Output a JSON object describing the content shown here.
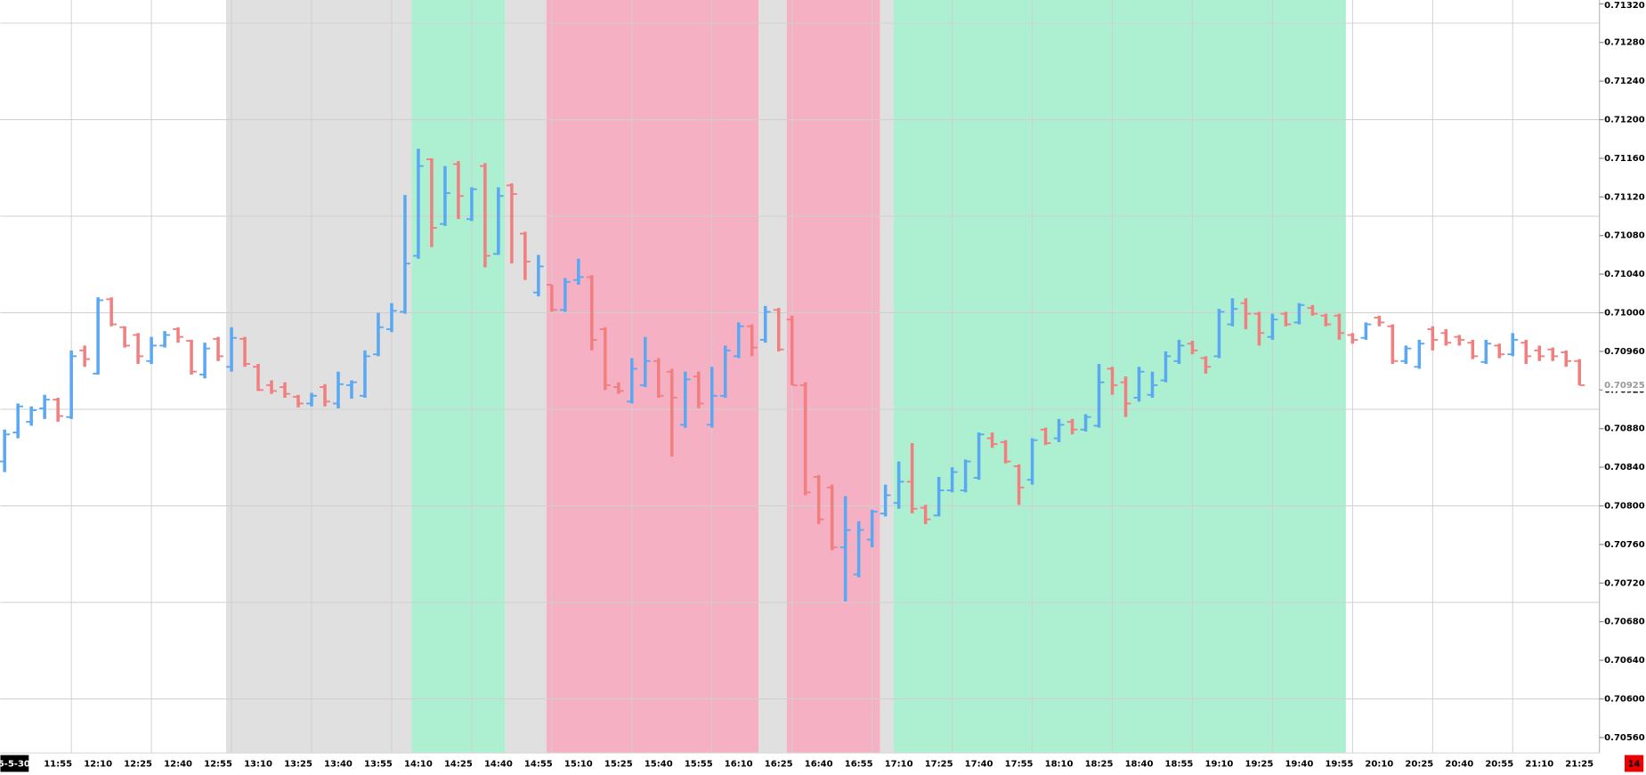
{
  "chart_data": {
    "type": "ohlc",
    "date_label": "5-5-30",
    "corner_label": "14",
    "up_color": "#5aa8f2",
    "down_color": "#f27f80",
    "grid": true,
    "ylim": [
      0.70544,
      0.71324
    ],
    "yticks": [
      {
        "value": 0.7132,
        "label": "0.71320"
      },
      {
        "value": 0.7128,
        "label": "0.71280"
      },
      {
        "value": 0.7124,
        "label": "0.71240"
      },
      {
        "value": 0.712,
        "label": "0.71200"
      },
      {
        "value": 0.7116,
        "label": "0.71160"
      },
      {
        "value": 0.7112,
        "label": "0.71120"
      },
      {
        "value": 0.7108,
        "label": "0.71080"
      },
      {
        "value": 0.7104,
        "label": "0.71040"
      },
      {
        "value": 0.71,
        "label": "0.71000"
      },
      {
        "value": 0.7096,
        "label": "0.70960"
      },
      {
        "value": 0.7092,
        "label": "0.70920"
      },
      {
        "value": 0.7088,
        "label": "0.70880"
      },
      {
        "value": 0.7084,
        "label": "0.70840"
      },
      {
        "value": 0.708,
        "label": "0.70800"
      },
      {
        "value": 0.7076,
        "label": "0.70760"
      },
      {
        "value": 0.7072,
        "label": "0.70720"
      },
      {
        "value": 0.7068,
        "label": "0.70680"
      },
      {
        "value": 0.7064,
        "label": "0.70640"
      },
      {
        "value": 0.706,
        "label": "0.70600"
      },
      {
        "value": 0.7056,
        "label": "0.70560"
      }
    ],
    "ygrid": [
      0.706,
      0.707,
      0.708,
      0.709,
      0.71,
      0.711,
      0.712,
      0.713
    ],
    "bands": [
      {
        "from": 16.6,
        "to": 30.5,
        "color": "#e0e0e0"
      },
      {
        "from": 30.5,
        "to": 37.5,
        "color": "#adf0d1"
      },
      {
        "from": 37.5,
        "to": 40.6,
        "color": "#e0e0e0"
      },
      {
        "from": 40.6,
        "to": 56.5,
        "color": "#f6b0c3"
      },
      {
        "from": 56.5,
        "to": 58.6,
        "color": "#e0e0e0"
      },
      {
        "from": 58.6,
        "to": 65.6,
        "color": "#f6b0c3"
      },
      {
        "from": 65.6,
        "to": 66.6,
        "color": "#e0e0e0"
      },
      {
        "from": 66.6,
        "to": 100.5,
        "color": "#adf0d1"
      }
    ],
    "categories": [
      null,
      null,
      null,
      null,
      "11:55",
      null,
      null,
      "12:10",
      null,
      null,
      "12:25",
      null,
      null,
      "12:40",
      null,
      null,
      "12:55",
      null,
      null,
      "13:10",
      null,
      null,
      "13:25",
      null,
      null,
      "13:40",
      null,
      null,
      "13:55",
      null,
      null,
      "14:10",
      null,
      null,
      "14:25",
      null,
      null,
      "14:40",
      null,
      null,
      "14:55",
      null,
      null,
      "15:10",
      null,
      null,
      "15:25",
      null,
      null,
      "15:40",
      null,
      null,
      "15:55",
      null,
      null,
      "16:10",
      null,
      null,
      "16:25",
      null,
      null,
      "16:40",
      null,
      null,
      "16:55",
      null,
      null,
      "17:10",
      null,
      null,
      "17:25",
      null,
      null,
      "17:40",
      null,
      null,
      "17:55",
      null,
      null,
      "18:10",
      null,
      null,
      "18:25",
      null,
      null,
      "18:40",
      null,
      null,
      "18:55",
      null,
      null,
      "19:10",
      null,
      null,
      "19:25",
      null,
      null,
      "19:40",
      null,
      null,
      "19:55",
      null,
      null,
      "20:10",
      null,
      null,
      "20:25",
      null,
      null,
      "20:40",
      null,
      null,
      "20:55",
      null,
      null,
      "21:10",
      null,
      null,
      "21:25"
    ],
    "open": [
      0.70846,
      0.70876,
      0.70887,
      0.70901,
      0.7091,
      0.70892,
      0.70961,
      0.70937,
      0.71014,
      0.70985,
      0.70977,
      0.7095,
      0.70966,
      0.70983,
      0.70971,
      0.70936,
      0.70973,
      0.70944,
      0.70973,
      0.70944,
      0.70925,
      0.70923,
      0.70913,
      0.70906,
      0.70923,
      0.70906,
      0.70925,
      0.70914,
      0.70957,
      0.70983,
      0.71001,
      0.71059,
      0.71159,
      0.71092,
      0.71154,
      0.71097,
      0.71152,
      0.71061,
      0.71132,
      0.71082,
      0.71021,
      0.71029,
      0.71003,
      0.71034,
      0.71037,
      0.70983,
      0.70923,
      0.70908,
      0.70925,
      0.7095,
      0.70939,
      0.70884,
      0.70934,
      0.70884,
      0.70914,
      0.70955,
      0.70986,
      0.70972,
      0.71003,
      0.70993,
      0.70925,
      0.7083,
      0.70819,
      0.70757,
      0.70729,
      0.70765,
      0.70792,
      0.70803,
      0.70825,
      0.70798,
      0.7079,
      0.70816,
      0.70816,
      0.70829,
      0.7087,
      0.70866,
      0.70841,
      0.70827,
      0.70879,
      0.7087,
      0.70887,
      0.70879,
      0.70883,
      0.70942,
      0.70928,
      0.70912,
      0.70915,
      0.7093,
      0.7095,
      0.70968,
      0.70953,
      0.70955,
      0.70988,
      0.7101,
      0.70999,
      0.70975,
      0.70999,
      0.7099,
      0.71005,
      0.70997,
      0.70997,
      0.70977,
      0.70974,
      0.70995,
      0.70986,
      0.7095,
      0.70944,
      0.70983,
      0.70979,
      0.70975,
      0.70969,
      0.70949,
      0.70966,
      0.70957,
      0.70969,
      0.70961,
      0.70962,
      0.70959,
      0.7095
    ],
    "high": [
      0.70879,
      0.70906,
      0.70903,
      0.70915,
      0.70912,
      0.70961,
      0.70966,
      0.71016,
      0.71016,
      0.70986,
      0.70979,
      0.70975,
      0.70981,
      0.70985,
      0.70972,
      0.70969,
      0.70975,
      0.70985,
      0.70975,
      0.70947,
      0.7093,
      0.70928,
      0.70915,
      0.70917,
      0.70926,
      0.70939,
      0.7093,
      0.70961,
      0.71,
      0.7101,
      0.71122,
      0.7117,
      0.7116,
      0.71152,
      0.71157,
      0.7113,
      0.71155,
      0.7113,
      0.71134,
      0.71084,
      0.7106,
      0.71029,
      0.71036,
      0.71056,
      0.71039,
      0.70985,
      0.70928,
      0.70953,
      0.70975,
      0.70953,
      0.70942,
      0.70939,
      0.70939,
      0.70944,
      0.70966,
      0.7099,
      0.70988,
      0.71007,
      0.71005,
      0.70997,
      0.70928,
      0.70832,
      0.70822,
      0.7081,
      0.70784,
      0.70796,
      0.70822,
      0.70846,
      0.70865,
      0.70801,
      0.7083,
      0.7084,
      0.70848,
      0.70876,
      0.70876,
      0.70868,
      0.70843,
      0.7087,
      0.70881,
      0.7089,
      0.7089,
      0.70895,
      0.70947,
      0.70944,
      0.70934,
      0.70944,
      0.70939,
      0.7096,
      0.70972,
      0.70971,
      0.70955,
      0.71004,
      0.71015,
      0.71015,
      0.71001,
      0.70999,
      0.71001,
      0.7101,
      0.71008,
      0.70999,
      0.70999,
      0.70979,
      0.7099,
      0.70997,
      0.70988,
      0.70966,
      0.70972,
      0.70986,
      0.70983,
      0.70977,
      0.70972,
      0.70972,
      0.70968,
      0.70979,
      0.70972,
      0.70966,
      0.70964,
      0.70961,
      0.70952
    ],
    "low": [
      0.70835,
      0.7087,
      0.70883,
      0.7089,
      0.70887,
      0.7089,
      0.70944,
      0.70936,
      0.70986,
      0.70964,
      0.70947,
      0.70947,
      0.70964,
      0.70969,
      0.70936,
      0.70932,
      0.7095,
      0.70939,
      0.70944,
      0.70919,
      0.70916,
      0.70912,
      0.70902,
      0.70903,
      0.70903,
      0.70901,
      0.70911,
      0.70912,
      0.70955,
      0.7098,
      0.70999,
      0.71056,
      0.71068,
      0.7109,
      0.71097,
      0.71095,
      0.71047,
      0.7106,
      0.71051,
      0.71034,
      0.71017,
      0.71001,
      0.71001,
      0.71029,
      0.70961,
      0.7092,
      0.70916,
      0.70906,
      0.70923,
      0.70912,
      0.70851,
      0.70881,
      0.70901,
      0.70881,
      0.70912,
      0.70953,
      0.70955,
      0.70969,
      0.7096,
      0.70925,
      0.70811,
      0.70781,
      0.70754,
      0.70701,
      0.70726,
      0.70757,
      0.70789,
      0.70797,
      0.70792,
      0.70781,
      0.70789,
      0.70814,
      0.70814,
      0.70827,
      0.7086,
      0.70844,
      0.70801,
      0.70822,
      0.70863,
      0.70866,
      0.70874,
      0.70877,
      0.70881,
      0.70915,
      0.70892,
      0.70908,
      0.70912,
      0.70928,
      0.70947,
      0.70957,
      0.70937,
      0.70953,
      0.70986,
      0.70983,
      0.70966,
      0.70972,
      0.70986,
      0.70988,
      0.70997,
      0.70986,
      0.70972,
      0.70968,
      0.70972,
      0.70986,
      0.70947,
      0.70947,
      0.70942,
      0.70961,
      0.70966,
      0.70966,
      0.70952,
      0.70947,
      0.70953,
      0.70955,
      0.70947,
      0.7095,
      0.7095,
      0.70944,
      0.70925
    ],
    "close": [
      0.70874,
      0.70903,
      0.70899,
      0.7091,
      0.70893,
      0.70955,
      0.70952,
      0.71013,
      0.70988,
      0.70966,
      0.70955,
      0.70966,
      0.70977,
      0.70975,
      0.70939,
      0.70963,
      0.70955,
      0.70974,
      0.70947,
      0.7092,
      0.70919,
      0.70916,
      0.70906,
      0.70914,
      0.70908,
      0.70926,
      0.70928,
      0.70955,
      0.70985,
      0.71002,
      0.71051,
      0.71152,
      0.71088,
      0.71124,
      0.71121,
      0.71128,
      0.71059,
      0.71121,
      0.71123,
      0.71053,
      0.71048,
      0.71003,
      0.71032,
      0.71037,
      0.70972,
      0.70925,
      0.70919,
      0.70942,
      0.7095,
      0.70914,
      0.70912,
      0.70931,
      0.70906,
      0.70914,
      0.70961,
      0.70986,
      0.70964,
      0.71001,
      0.70962,
      0.70925,
      0.70814,
      0.70786,
      0.70757,
      0.70775,
      0.70775,
      0.70794,
      0.70811,
      0.70825,
      0.70797,
      0.70786,
      0.70816,
      0.70835,
      0.70846,
      0.70874,
      0.70864,
      0.70846,
      0.70819,
      0.70868,
      0.70865,
      0.70884,
      0.70879,
      0.70892,
      0.70928,
      0.70925,
      0.70906,
      0.70939,
      0.70925,
      0.70955,
      0.70966,
      0.70961,
      0.70944,
      0.71001,
      0.71004,
      0.70999,
      0.70979,
      0.70993,
      0.70988,
      0.71008,
      0.70999,
      0.70988,
      0.70979,
      0.70972,
      0.70988,
      0.7099,
      0.7095,
      0.70963,
      0.70968,
      0.70972,
      0.70969,
      0.70972,
      0.70955,
      0.70968,
      0.70957,
      0.70972,
      0.70955,
      0.70955,
      0.70955,
      0.7095,
      0.70925
    ]
  }
}
